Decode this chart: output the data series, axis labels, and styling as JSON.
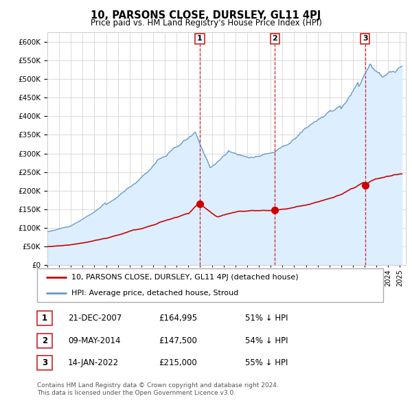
{
  "title": "10, PARSONS CLOSE, DURSLEY, GL11 4PJ",
  "subtitle": "Price paid vs. HM Land Registry's House Price Index (HPI)",
  "legend_red": "10, PARSONS CLOSE, DURSLEY, GL11 4PJ (detached house)",
  "legend_blue": "HPI: Average price, detached house, Stroud",
  "footnote1": "Contains HM Land Registry data © Crown copyright and database right 2024.",
  "footnote2": "This data is licensed under the Open Government Licence v3.0.",
  "transactions": [
    {
      "num": 1,
      "date": "21-DEC-2007",
      "price": "£164,995",
      "pct": "51% ↓ HPI",
      "year": 2007.97,
      "price_val": 164995
    },
    {
      "num": 2,
      "date": "09-MAY-2014",
      "price": "£147,500",
      "pct": "54% ↓ HPI",
      "year": 2014.36,
      "price_val": 147500
    },
    {
      "num": 3,
      "date": "14-JAN-2022",
      "price": "£215,000",
      "pct": "55% ↓ HPI",
      "year": 2022.04,
      "price_val": 215000
    }
  ],
  "red_color": "#cc0000",
  "blue_color": "#6699cc",
  "blue_fill": "#ddeeff",
  "grid_color": "#cccccc",
  "vline_color": "#cc0000",
  "box_color": "#cc3333",
  "ylim": [
    0,
    625000
  ],
  "yticks": [
    0,
    50000,
    100000,
    150000,
    200000,
    250000,
    300000,
    350000,
    400000,
    450000,
    500000,
    550000,
    600000
  ],
  "xlim_start": 1995.0,
  "xlim_end": 2025.5
}
